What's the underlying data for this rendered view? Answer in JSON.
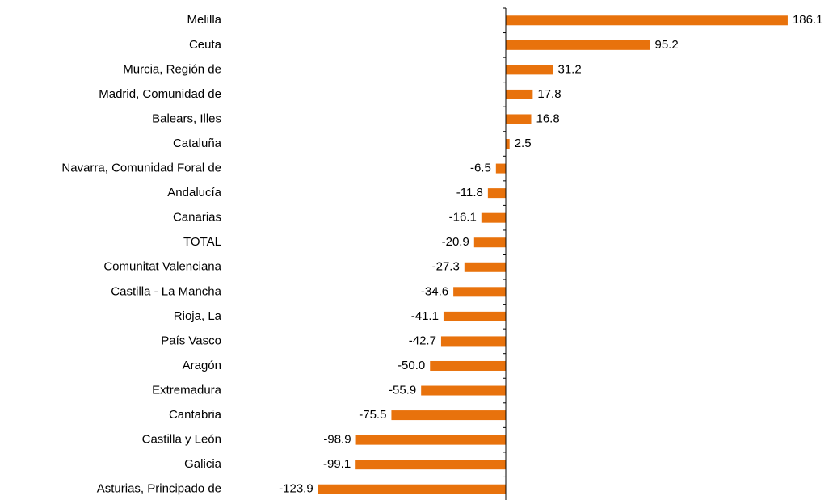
{
  "chart_data": {
    "type": "hbar",
    "categories": [
      "Melilla",
      "Ceuta",
      "Murcia, Región de",
      "Madrid, Comunidad de",
      "Balears, Illes",
      "Cataluña",
      "Navarra, Comunidad Foral de",
      "Andalucía",
      "Canarias",
      "TOTAL",
      "Comunitat Valenciana",
      "Castilla - La Mancha",
      "Rioja, La",
      "País Vasco",
      "Aragón",
      "Extremadura",
      "Cantabria",
      "Castilla y León",
      "Galicia",
      "Asturias, Principado de"
    ],
    "values": [
      186.1,
      95.2,
      31.2,
      17.8,
      16.8,
      2.5,
      -6.5,
      -11.8,
      -16.1,
      -20.9,
      -27.3,
      -34.6,
      -41.1,
      -42.7,
      -50.0,
      -55.9,
      -75.5,
      -98.9,
      -99.1,
      -123.9
    ],
    "value_labels": [
      "186.1",
      "95.2",
      "31.2",
      "17.8",
      "16.8",
      "2.5",
      "-6.5",
      "-11.8",
      "-16.1",
      "-20.9",
      "-27.3",
      "-34.6",
      "-41.1",
      "-42.7",
      "-50.0",
      "-55.9",
      "-75.5",
      "-98.9",
      "-99.1",
      "-123.9"
    ],
    "color": "#e8720c",
    "xlim": [
      -150,
      200
    ]
  }
}
